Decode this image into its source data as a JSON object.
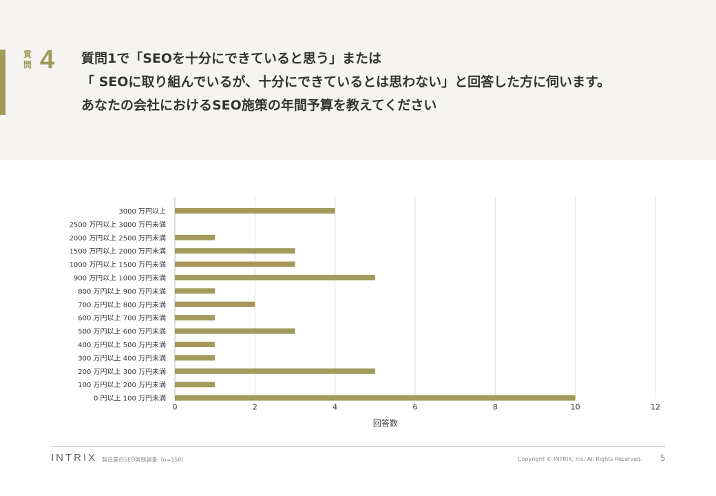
{
  "header": {
    "question_label": [
      "質",
      "問"
    ],
    "question_number": "4",
    "question_lines": [
      "質問1で「SEOを十分にできていると思う」または",
      "「 SEOに取り組んでいるが、十分にできているとは思わない」と回答した方に伺います。",
      "あなたの会社におけるSEO施策の年間予算を教えてください"
    ]
  },
  "chart_data": {
    "type": "bar",
    "orientation": "horizontal",
    "categories": [
      "3000 万円以上",
      "2500 万円以上 3000 万円未満",
      "2000 万円以上 2500 万円未満",
      "1500 万円以上 2000 万円未満",
      "1000 万円以上 1500 万円未満",
      "900 万円以上 1000 万円未満",
      "800 万円以上 900 万円未満",
      "700 万円以上 800 万円未満",
      "600 万円以上 700 万円未満",
      "500 万円以上 600 万円未満",
      "400 万円以上 500 万円未満",
      "300 万円以上 400 万円未満",
      "200 万円以上 300 万円未満",
      "100 万円以上 200 万円未満",
      "0 円以上 100 万円未満"
    ],
    "values": [
      4,
      0,
      1,
      3,
      3,
      5,
      1,
      2,
      1,
      3,
      1,
      1,
      5,
      1,
      10
    ],
    "xlabel": "回答数",
    "xlim": [
      0,
      12
    ],
    "xticks": [
      0,
      2,
      4,
      6,
      8,
      10,
      12
    ],
    "grid": true,
    "bar_color": "#a39a5c"
  },
  "footer": {
    "logo": "INTRIX",
    "source": "製造業のSEO実態調査（n=150）",
    "copyright": "Copyright © INTRIX, Inc. All Rights Reserved.",
    "page": "5"
  }
}
